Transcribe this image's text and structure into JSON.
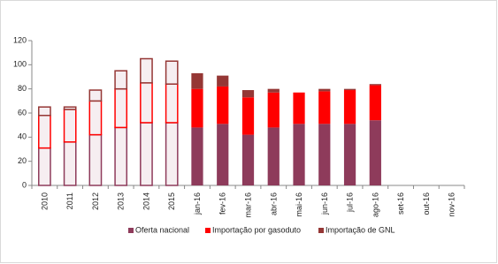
{
  "chart_data": {
    "type": "stacked_bar",
    "categories": [
      "2010",
      "2011",
      "2012",
      "2013",
      "2014",
      "2015",
      "jan-16",
      "fev-16",
      "mar-16",
      "abr-16",
      "mai-16",
      "jun-16",
      "jul-16",
      "ago-16",
      "set-16",
      "out-16",
      "nov-16"
    ],
    "series": [
      {
        "name": "Oferta nacional",
        "color": "#8e3b5b",
        "values": [
          31,
          36,
          42,
          48,
          52,
          52,
          48,
          51,
          42,
          48,
          51,
          51,
          51,
          54,
          null,
          null,
          null
        ]
      },
      {
        "name": "Importação por gasoduto",
        "color": "#ff0000",
        "values": [
          27,
          27,
          28,
          32,
          33,
          32,
          32,
          31,
          31,
          29,
          26,
          27,
          28,
          29,
          null,
          null,
          null
        ]
      },
      {
        "name": "Importação de GNL",
        "color": "#953735",
        "values": [
          7,
          2,
          9,
          15,
          20,
          19,
          13,
          9,
          6,
          3,
          0,
          2,
          1,
          1,
          null,
          null,
          null
        ]
      }
    ],
    "ylim": [
      0,
      120
    ],
    "yticks": [
      0,
      20,
      40,
      60,
      80,
      100,
      120
    ],
    "grid": false,
    "legend": "bottom"
  }
}
